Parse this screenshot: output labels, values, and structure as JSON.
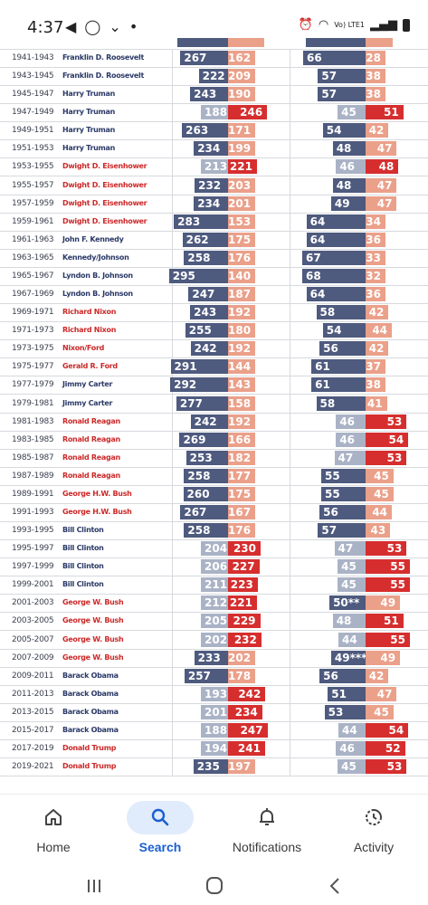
{
  "status_bar": {
    "time": "4:37",
    "left_icons": "◀ ◯ ⌄ •",
    "right_text": "Vo) LTE1"
  },
  "table": {
    "rows": [
      {
        "years": "1941-1943",
        "president": "Franklin D. Roosevelt",
        "party": "dem",
        "house_dem": 267,
        "house_rep": 162,
        "senate_dem": "66",
        "senate_rep": "28",
        "house_dem_control": true,
        "senate_dem_control": true
      },
      {
        "years": "1943-1945",
        "president": "Franklin D. Roosevelt",
        "party": "dem",
        "house_dem": 222,
        "house_rep": 209,
        "senate_dem": "57",
        "senate_rep": "38",
        "house_dem_control": true,
        "senate_dem_control": true
      },
      {
        "years": "1945-1947",
        "president": "Harry Truman",
        "party": "dem",
        "house_dem": 243,
        "house_rep": 190,
        "senate_dem": "57",
        "senate_rep": "38",
        "house_dem_control": true,
        "senate_dem_control": true
      },
      {
        "years": "1947-1949",
        "president": "Harry Truman",
        "party": "dem",
        "house_dem": 188,
        "house_rep": 246,
        "senate_dem": "45",
        "senate_rep": "51",
        "house_dem_control": false,
        "senate_dem_control": false
      },
      {
        "years": "1949-1951",
        "president": "Harry Truman",
        "party": "dem",
        "house_dem": 263,
        "house_rep": 171,
        "senate_dem": "54",
        "senate_rep": "42",
        "house_dem_control": true,
        "senate_dem_control": true
      },
      {
        "years": "1951-1953",
        "president": "Harry Truman",
        "party": "dem",
        "house_dem": 234,
        "house_rep": 199,
        "senate_dem": "48",
        "senate_rep": "47",
        "house_dem_control": true,
        "senate_dem_control": true
      },
      {
        "years": "1953-1955",
        "president": "Dwight D. Eisenhower",
        "party": "rep",
        "house_dem": 213,
        "house_rep": 221,
        "senate_dem": "46",
        "senate_rep": "48",
        "house_dem_control": false,
        "senate_dem_control": false
      },
      {
        "years": "1955-1957",
        "president": "Dwight D. Eisenhower",
        "party": "rep",
        "house_dem": 232,
        "house_rep": 203,
        "senate_dem": "48",
        "senate_rep": "47",
        "house_dem_control": true,
        "senate_dem_control": true
      },
      {
        "years": "1957-1959",
        "president": "Dwight D. Eisenhower",
        "party": "rep",
        "house_dem": 234,
        "house_rep": 201,
        "senate_dem": "49",
        "senate_rep": "47",
        "house_dem_control": true,
        "senate_dem_control": true
      },
      {
        "years": "1959-1961",
        "president": "Dwight D. Eisenhower",
        "party": "rep",
        "house_dem": 283,
        "house_rep": 153,
        "senate_dem": "64",
        "senate_rep": "34",
        "house_dem_control": true,
        "senate_dem_control": true
      },
      {
        "years": "1961-1963",
        "president": "John F. Kennedy",
        "party": "dem",
        "house_dem": 262,
        "house_rep": 175,
        "senate_dem": "64",
        "senate_rep": "36",
        "house_dem_control": true,
        "senate_dem_control": true
      },
      {
        "years": "1963-1965",
        "president": "Kennedy/Johnson",
        "party": "dem",
        "house_dem": 258,
        "house_rep": 176,
        "senate_dem": "67",
        "senate_rep": "33",
        "house_dem_control": true,
        "senate_dem_control": true
      },
      {
        "years": "1965-1967",
        "president": "Lyndon B. Johnson",
        "party": "dem",
        "house_dem": 295,
        "house_rep": 140,
        "senate_dem": "68",
        "senate_rep": "32",
        "house_dem_control": true,
        "senate_dem_control": true
      },
      {
        "years": "1967-1969",
        "president": "Lyndon B. Johnson",
        "party": "dem",
        "house_dem": 247,
        "house_rep": 187,
        "senate_dem": "64",
        "senate_rep": "36",
        "house_dem_control": true,
        "senate_dem_control": true
      },
      {
        "years": "1969-1971",
        "president": "Richard Nixon",
        "party": "rep",
        "house_dem": 243,
        "house_rep": 192,
        "senate_dem": "58",
        "senate_rep": "42",
        "house_dem_control": true,
        "senate_dem_control": true
      },
      {
        "years": "1971-1973",
        "president": "Richard Nixon",
        "party": "rep",
        "house_dem": 255,
        "house_rep": 180,
        "senate_dem": "54",
        "senate_rep": "44",
        "house_dem_control": true,
        "senate_dem_control": true
      },
      {
        "years": "1973-1975",
        "president": "Nixon/Ford",
        "party": "rep",
        "house_dem": 242,
        "house_rep": 192,
        "senate_dem": "56",
        "senate_rep": "42",
        "house_dem_control": true,
        "senate_dem_control": true
      },
      {
        "years": "1975-1977",
        "president": "Gerald R. Ford",
        "party": "rep",
        "house_dem": 291,
        "house_rep": 144,
        "senate_dem": "61",
        "senate_rep": "37",
        "house_dem_control": true,
        "senate_dem_control": true
      },
      {
        "years": "1977-1979",
        "president": "Jimmy Carter",
        "party": "dem",
        "house_dem": 292,
        "house_rep": 143,
        "senate_dem": "61",
        "senate_rep": "38",
        "house_dem_control": true,
        "senate_dem_control": true
      },
      {
        "years": "1979-1981",
        "president": "Jimmy Carter",
        "party": "dem",
        "house_dem": 277,
        "house_rep": 158,
        "senate_dem": "58",
        "senate_rep": "41",
        "house_dem_control": true,
        "senate_dem_control": true
      },
      {
        "years": "1981-1983",
        "president": "Ronald Reagan",
        "party": "rep",
        "house_dem": 242,
        "house_rep": 192,
        "senate_dem": "46",
        "senate_rep": "53",
        "house_dem_control": true,
        "senate_dem_control": false
      },
      {
        "years": "1983-1985",
        "president": "Ronald Reagan",
        "party": "rep",
        "house_dem": 269,
        "house_rep": 166,
        "senate_dem": "46",
        "senate_rep": "54",
        "house_dem_control": true,
        "senate_dem_control": false
      },
      {
        "years": "1985-1987",
        "president": "Ronald Reagan",
        "party": "rep",
        "house_dem": 253,
        "house_rep": 182,
        "senate_dem": "47",
        "senate_rep": "53",
        "house_dem_control": true,
        "senate_dem_control": false
      },
      {
        "years": "1987-1989",
        "president": "Ronald Reagan",
        "party": "rep",
        "house_dem": 258,
        "house_rep": 177,
        "senate_dem": "55",
        "senate_rep": "45",
        "house_dem_control": true,
        "senate_dem_control": true
      },
      {
        "years": "1989-1991",
        "president": "George H.W. Bush",
        "party": "rep",
        "house_dem": 260,
        "house_rep": 175,
        "senate_dem": "55",
        "senate_rep": "45",
        "house_dem_control": true,
        "senate_dem_control": true
      },
      {
        "years": "1991-1993",
        "president": "George H.W. Bush",
        "party": "rep",
        "house_dem": 267,
        "house_rep": 167,
        "senate_dem": "56",
        "senate_rep": "44",
        "house_dem_control": true,
        "senate_dem_control": true
      },
      {
        "years": "1993-1995",
        "president": "Bill Clinton",
        "party": "dem",
        "house_dem": 258,
        "house_rep": 176,
        "senate_dem": "57",
        "senate_rep": "43",
        "house_dem_control": true,
        "senate_dem_control": true
      },
      {
        "years": "1995-1997",
        "president": "Bill Clinton",
        "party": "dem",
        "house_dem": 204,
        "house_rep": 230,
        "senate_dem": "47",
        "senate_rep": "53",
        "house_dem_control": false,
        "senate_dem_control": false
      },
      {
        "years": "1997-1999",
        "president": "Bill Clinton",
        "party": "dem",
        "house_dem": 206,
        "house_rep": 227,
        "senate_dem": "45",
        "senate_rep": "55",
        "house_dem_control": false,
        "senate_dem_control": false
      },
      {
        "years": "1999-2001",
        "president": "Bill Clinton",
        "party": "dem",
        "house_dem": 211,
        "house_rep": 223,
        "senate_dem": "45",
        "senate_rep": "55",
        "house_dem_control": false,
        "senate_dem_control": false
      },
      {
        "years": "2001-2003",
        "president": "George W. Bush",
        "party": "rep",
        "house_dem": 212,
        "house_rep": 221,
        "senate_dem": "50**",
        "senate_rep": "49",
        "house_dem_control": false,
        "senate_dem_control": true
      },
      {
        "years": "2003-2005",
        "president": "George W. Bush",
        "party": "rep",
        "house_dem": 205,
        "house_rep": 229,
        "senate_dem": "48",
        "senate_rep": "51",
        "house_dem_control": false,
        "senate_dem_control": false
      },
      {
        "years": "2005-2007",
        "president": "George W. Bush",
        "party": "rep",
        "house_dem": 202,
        "house_rep": 232,
        "senate_dem": "44",
        "senate_rep": "55",
        "house_dem_control": false,
        "senate_dem_control": false
      },
      {
        "years": "2007-2009",
        "president": "George W. Bush",
        "party": "rep",
        "house_dem": 233,
        "house_rep": 202,
        "senate_dem": "49***",
        "senate_rep": "49",
        "house_dem_control": true,
        "senate_dem_control": true
      },
      {
        "years": "2009-2011",
        "president": "Barack Obama",
        "party": "dem",
        "house_dem": 257,
        "house_rep": 178,
        "senate_dem": "56",
        "senate_rep": "42",
        "house_dem_control": true,
        "senate_dem_control": true
      },
      {
        "years": "2011-2013",
        "president": "Barack Obama",
        "party": "dem",
        "house_dem": 193,
        "house_rep": 242,
        "senate_dem": "51",
        "senate_rep": "47",
        "house_dem_control": false,
        "senate_dem_control": true
      },
      {
        "years": "2013-2015",
        "president": "Barack Obama",
        "party": "dem",
        "house_dem": 201,
        "house_rep": 234,
        "senate_dem": "53",
        "senate_rep": "45",
        "house_dem_control": false,
        "senate_dem_control": true
      },
      {
        "years": "2015-2017",
        "president": "Barack Obama",
        "party": "dem",
        "house_dem": 188,
        "house_rep": 247,
        "senate_dem": "44",
        "senate_rep": "54",
        "house_dem_control": false,
        "senate_dem_control": false
      },
      {
        "years": "2017-2019",
        "president": "Donald Trump",
        "party": "rep",
        "house_dem": 194,
        "house_rep": 241,
        "senate_dem": "46",
        "senate_rep": "52",
        "house_dem_control": false,
        "senate_dem_control": false
      },
      {
        "years": "2019-2021",
        "president": "Donald Trump",
        "party": "rep",
        "house_dem": 235,
        "house_rep": 197,
        "senate_dem": "45",
        "senate_rep": "53",
        "house_dem_control": true,
        "senate_dem_control": false
      }
    ]
  },
  "colors": {
    "dem_strong": "#4e5a7e",
    "dem_light": "#aab3c6",
    "rep_strong": "#d62e2e",
    "rep_light": "#eba08a",
    "dem_text": "#2b3a67",
    "rep_text": "#cc2a2a",
    "nav_active": "#1a5fd0",
    "nav_pill": "#e0ebfb"
  },
  "bottom_nav": {
    "items": [
      {
        "label": "Home",
        "icon": "home-icon",
        "active": false
      },
      {
        "label": "Search",
        "icon": "search-icon",
        "active": true
      },
      {
        "label": "Notifications",
        "icon": "bell-icon",
        "active": false
      },
      {
        "label": "Activity",
        "icon": "activity-icon",
        "active": false
      }
    ]
  },
  "system_nav": {
    "buttons": [
      "recent-apps-icon",
      "home-circle-icon",
      "back-chevron-icon"
    ]
  }
}
